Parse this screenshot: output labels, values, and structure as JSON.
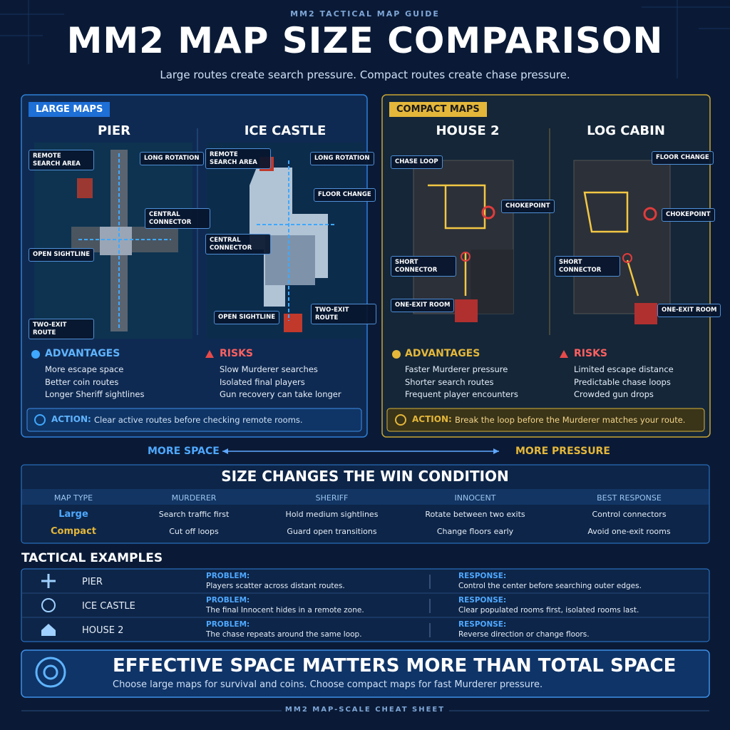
{
  "header": {
    "kicker": "MM2 TACTICAL MAP GUIDE",
    "title": "MM2 MAP SIZE COMPARISON",
    "subtitle": "Large routes create search pressure. Compact routes create chase pressure."
  },
  "panels": [
    {
      "tag": "LARGE MAPS",
      "maps": [
        {
          "name": "PIER",
          "labels": [
            "REMOTE SEARCH AREA",
            "LONG ROTATION",
            "CENTRAL CONNECTOR",
            "OPEN SIGHTLINE",
            "TWO-EXIT ROUTE"
          ]
        },
        {
          "name": "ICE CASTLE",
          "labels": [
            "REMOTE SEARCH AREA",
            "LONG ROTATION",
            "FLOOR CHANGE",
            "CENTRAL CONNECTOR",
            "OPEN SIGHTLINE",
            "TWO-EXIT ROUTE"
          ]
        }
      ],
      "left": {
        "heading": "ADVANTAGES",
        "items": [
          "More escape space",
          "Better coin routes",
          "Longer Sheriff sightlines"
        ]
      },
      "right": {
        "heading": "RISKS",
        "items": [
          "Slow Murderer searches",
          "Isolated final players",
          "Gun recovery can take longer"
        ]
      },
      "action": {
        "label": "ACTION:",
        "text": "Clear active routes before checking remote rooms."
      }
    },
    {
      "tag": "COMPACT MAPS",
      "maps": [
        {
          "name": "HOUSE 2",
          "labels": [
            "CHASE LOOP",
            "CHOKEPOINT",
            "SHORT CONNECTOR",
            "ONE-EXIT ROOM"
          ]
        },
        {
          "name": "LOG CABIN",
          "labels": [
            "FLOOR CHANGE",
            "CHOKEPOINT",
            "SHORT CONNECTOR",
            "ONE-EXIT ROOM"
          ]
        }
      ],
      "left": {
        "heading": "ADVANTAGES",
        "items": [
          "Faster Murderer pressure",
          "Shorter search routes",
          "Frequent player encounters"
        ]
      },
      "right": {
        "heading": "RISKS",
        "items": [
          "Limited escape distance",
          "Predictable chase loops",
          "Crowded gun drops"
        ]
      },
      "action": {
        "label": "ACTION:",
        "text": "Break the loop before the Murderer matches your route."
      }
    }
  ],
  "scale": {
    "left": "MORE SPACE",
    "right": "MORE PRESSURE"
  },
  "table": {
    "title": "SIZE CHANGES THE WIN CONDITION",
    "header": [
      "MAP TYPE",
      "MURDERER",
      "SHERIFF",
      "INNOCENT",
      "BEST RESPONSE"
    ],
    "rows": [
      [
        "Large",
        "Search traffic first",
        "Hold medium sightlines",
        "Rotate between two exits",
        "Control connectors"
      ],
      [
        "Compact",
        "Cut off loops",
        "Guard open transitions",
        "Change floors early",
        "Avoid one-exit rooms"
      ]
    ]
  },
  "examples": {
    "title": "TACTICAL EXAMPLES",
    "rows": [
      {
        "map": "PIER",
        "problem_label": "PROBLEM:",
        "problem": "Players scatter across distant routes.",
        "response_label": "RESPONSE:",
        "response": "Control the center before searching outer edges."
      },
      {
        "map": "ICE CASTLE",
        "problem_label": "PROBLEM:",
        "problem": "The final Innocent hides in a remote zone.",
        "response_label": "RESPONSE:",
        "response": "Clear populated rooms first, isolated rooms last."
      },
      {
        "map": "HOUSE 2",
        "problem_label": "PROBLEM:",
        "problem": "The chase repeats around the same loop.",
        "response_label": "RESPONSE:",
        "response": "Reverse direction or change floors."
      }
    ]
  },
  "banner": {
    "title": "EFFECTIVE SPACE MATTERS MORE THAN TOTAL SPACE",
    "text": "Choose large maps for survival and coins. Choose compact maps for fast Murderer pressure."
  },
  "footer": "MM2 MAP-SCALE CHEAT SHEET"
}
